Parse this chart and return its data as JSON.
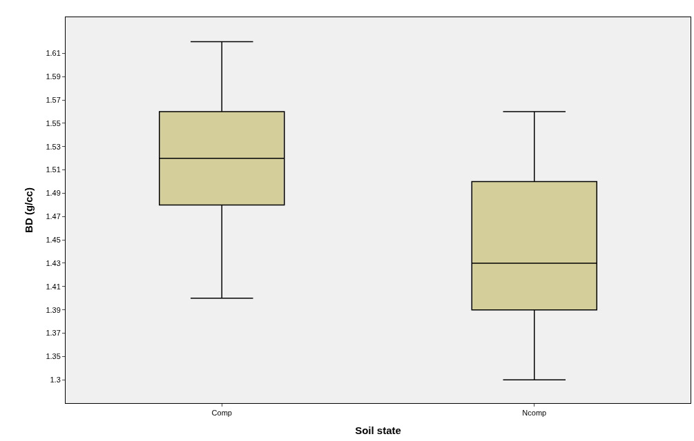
{
  "chart_data": {
    "type": "box",
    "xlabel": "Soil state",
    "ylabel": "BD (g/cc)",
    "categories": [
      "Comp",
      "Ncomp"
    ],
    "boxes": [
      {
        "low": 1.4,
        "q1": 1.48,
        "median": 1.52,
        "q3": 1.56,
        "high": 1.62
      },
      {
        "low": 1.33,
        "q1": 1.39,
        "median": 1.43,
        "q3": 1.5,
        "high": 1.56
      }
    ],
    "color": "#d3ce9a",
    "ylim": [
      1.31,
      1.641
    ],
    "yticks": [
      {
        "value": 1.33,
        "label": "1.3"
      },
      1.35,
      1.37,
      1.39,
      1.41,
      1.43,
      1.45,
      1.47,
      1.49,
      1.51,
      1.53,
      1.55,
      1.57,
      1.59,
      1.61
    ],
    "grid": false
  }
}
